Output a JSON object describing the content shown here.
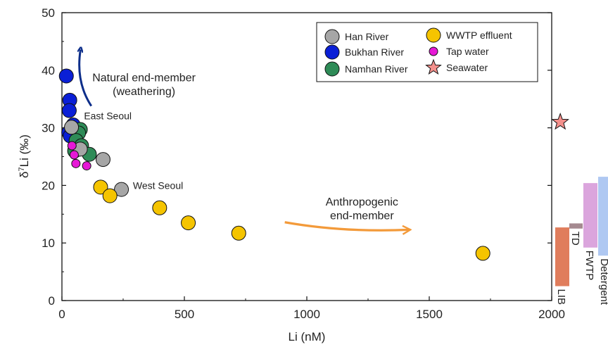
{
  "chart_data": {
    "type": "scatter",
    "xlabel": "Li (nM)",
    "ylabel_prefix": "δ",
    "ylabel_sup": "7",
    "ylabel_rest": "Li (‰)",
    "xlim": [
      0,
      2000
    ],
    "ylim": [
      0,
      50
    ],
    "x_ticks": [
      0,
      500,
      1000,
      1500,
      2000
    ],
    "y_ticks": [
      0,
      10,
      20,
      30,
      40,
      50
    ],
    "x_tick_labels": [
      "0",
      "500",
      "1000",
      "1500",
      "2000"
    ],
    "y_tick_labels": [
      "0",
      "10",
      "20",
      "30",
      "40",
      "50"
    ],
    "grid": false,
    "legend_position": "top-right",
    "series": [
      {
        "name": "Han River",
        "marker": "circle",
        "size": "large",
        "color": "#a6a6a6",
        "points": [
          [
            39,
            30.1
          ],
          [
            75,
            26.3
          ],
          [
            168,
            24.5
          ],
          [
            243,
            19.3
          ]
        ]
      },
      {
        "name": "Bukhan River",
        "marker": "circle",
        "size": "large",
        "color": "#0a1fd6",
        "points": [
          [
            18,
            39.0
          ],
          [
            32,
            34.8
          ],
          [
            30,
            33.0
          ],
          [
            28,
            29.2
          ],
          [
            34,
            28.6
          ],
          [
            46,
            30.5
          ]
        ]
      },
      {
        "name": "Namhan River",
        "marker": "circle",
        "size": "large",
        "color": "#2e8b57",
        "points": [
          [
            75,
            29.7
          ],
          [
            68,
            29.1
          ],
          [
            58,
            27.8
          ],
          [
            80,
            26.9
          ],
          [
            52,
            26.0
          ],
          [
            112,
            25.4
          ]
        ]
      },
      {
        "name": "WWTP effluent",
        "marker": "circle",
        "size": "large",
        "color": "#f5c400",
        "points": [
          [
            158,
            19.7
          ],
          [
            196,
            18.2
          ],
          [
            399,
            16.1
          ],
          [
            516,
            13.5
          ],
          [
            722,
            11.7
          ],
          [
            1719,
            8.2
          ]
        ]
      },
      {
        "name": "Tap water",
        "marker": "circle",
        "size": "small",
        "color": "#e619d6",
        "points": [
          [
            41,
            26.9
          ],
          [
            50,
            25.3
          ],
          [
            57,
            23.8
          ],
          [
            101,
            23.4
          ]
        ]
      },
      {
        "name": "Seawater",
        "marker": "star",
        "size": "large",
        "color": "#f4908c",
        "points": [
          [
            2035,
            31.0
          ]
        ]
      }
    ],
    "annotations": [
      {
        "text": "East Seoul",
        "x": 90,
        "y": 31.5,
        "anchor": "start"
      },
      {
        "text": "West Seoul",
        "x": 290,
        "y": 19.4,
        "anchor": "start"
      },
      {
        "text": "Natural end-member",
        "x": 335,
        "y": 38.1,
        "anchor": "middle"
      },
      {
        "text": "(weathering)",
        "x": 335,
        "y": 35.7,
        "anchor": "middle"
      },
      {
        "text": "Anthropogenic",
        "x": 1225,
        "y": 16.5,
        "anchor": "middle"
      },
      {
        "text": "end-member",
        "x": 1225,
        "y": 14.1,
        "anchor": "middle"
      }
    ],
    "arrows": [
      {
        "name": "natural-arrow",
        "color": "#0d2e8a",
        "from": [
          120,
          33.8
        ],
        "ctrl": [
          55,
          38
        ],
        "to": [
          76,
          43.6
        ]
      },
      {
        "name": "anthropogenic-arrow",
        "color": "#f39a3a",
        "from": [
          910,
          13.6
        ],
        "ctrl": [
          1150,
          11.8
        ],
        "to": [
          1420,
          12.3
        ]
      }
    ],
    "side_bars": [
      {
        "label": "LIB",
        "ymin": 2.5,
        "ymax": 12.7,
        "color": "#e07d5c"
      },
      {
        "label": "TD",
        "ymin": 12.5,
        "ymax": 13.4,
        "color": "#a58a90"
      },
      {
        "label": "FWTP",
        "ymin": 9.2,
        "ymax": 20.4,
        "color": "#dba5dd"
      },
      {
        "label": "Detergent",
        "ymin": 7.8,
        "ymax": 21.5,
        "color": "#afc8f2"
      }
    ]
  }
}
